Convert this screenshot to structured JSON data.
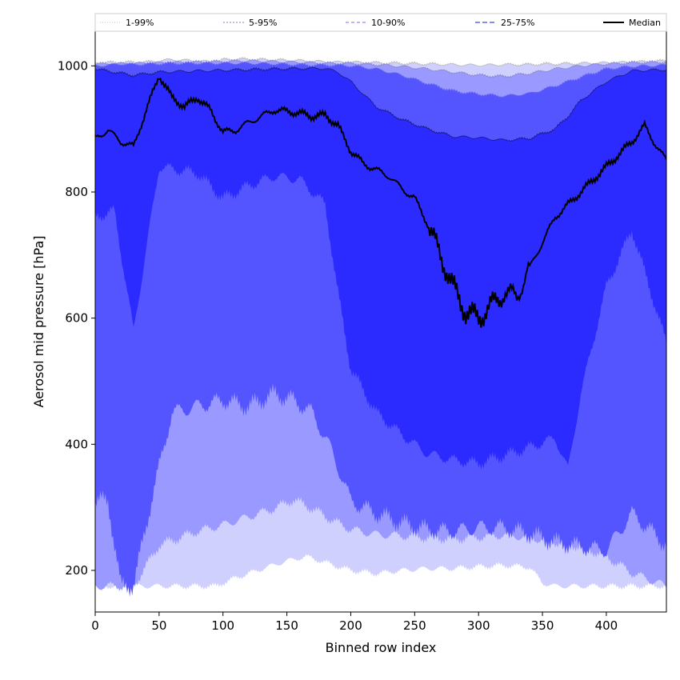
{
  "chart_data": {
    "type": "area",
    "xlabel": "Binned row index",
    "ylabel": "Aerosol mid pressure [hPa]",
    "xlim": [
      0,
      447
    ],
    "ylim": [
      134,
      1055
    ],
    "x_ticks": [
      0,
      50,
      100,
      150,
      200,
      250,
      300,
      350,
      400
    ],
    "y_ticks": [
      200,
      400,
      600,
      800,
      1000
    ],
    "grid": false,
    "legend_position": "top",
    "bands": [
      {
        "name": "1-99%",
        "color": "#d0d0ff",
        "line_color": "#b8b8b8",
        "x": [
          0,
          40,
          60,
          80,
          95,
          100,
          110,
          130,
          150,
          165,
          175,
          190,
          200,
          220,
          240,
          260,
          280,
          300,
          320,
          340,
          350,
          360,
          380,
          400,
          420,
          447
        ],
        "upper": [
          1005,
          1006,
          1010,
          1008,
          1006,
          1010,
          1011,
          1010,
          1009,
          1008,
          1007,
          1006,
          1006,
          1005,
          1004,
          1003,
          1002,
          1001,
          1002,
          1002,
          1003,
          1003,
          1004,
          1005,
          1006,
          1008
        ],
        "lower": [
          175,
          175,
          175,
          175,
          175,
          180,
          188,
          202,
          215,
          222,
          216,
          206,
          200,
          195,
          200,
          203,
          203,
          206,
          208,
          205,
          180,
          175,
          175,
          175,
          175,
          175
        ]
      },
      {
        "name": "5-95%",
        "color": "#9999ff",
        "line_color": "#8888cc",
        "x": [
          0,
          30,
          50,
          80,
          100,
          120,
          140,
          155,
          170,
          185,
          200,
          220,
          240,
          260,
          280,
          300,
          320,
          340,
          360,
          380,
          400,
          420,
          447
        ],
        "upper": [
          1003,
          1004,
          1005,
          1006,
          1007,
          1008,
          1007,
          1006,
          1005,
          1004,
          1004,
          1002,
          999,
          995,
          990,
          985,
          983,
          988,
          995,
          1000,
          1003,
          1005,
          1006
        ],
        "lower": [
          175,
          175,
          240,
          262,
          272,
          285,
          298,
          312,
          298,
          280,
          265,
          257,
          255,
          252,
          250,
          253,
          256,
          252,
          245,
          238,
          222,
          196,
          175
        ]
      },
      {
        "name": "10-90%",
        "color": "#5555ff",
        "line_color": "#6666ee",
        "x": [
          0,
          10,
          20,
          30,
          45,
          60,
          80,
          100,
          120,
          140,
          155,
          170,
          185,
          200,
          220,
          240,
          260,
          280,
          300,
          320,
          340,
          360,
          380,
          400,
          420,
          447
        ],
        "upper": [
          1000,
          1001,
          1003,
          1002,
          1003,
          1004,
          1004,
          1004,
          1004,
          1003,
          1002,
          1001,
          1001,
          1000,
          995,
          985,
          972,
          960,
          955,
          952,
          956,
          968,
          982,
          995,
          999,
          1001
        ],
        "lower": [
          310,
          310,
          176,
          176,
          320,
          450,
          460,
          470,
          460,
          480,
          470,
          450,
          390,
          310,
          290,
          275,
          265,
          262,
          268,
          268,
          258,
          245,
          238,
          232,
          290,
          240
        ]
      },
      {
        "name": "25-75%",
        "color": "#2b2bff",
        "line_color": "#1a1a7f",
        "x": [
          0,
          15,
          30,
          50,
          80,
          100,
          120,
          140,
          160,
          180,
          190,
          200,
          220,
          240,
          260,
          280,
          300,
          320,
          340,
          360,
          370,
          380,
          400,
          420,
          447
        ],
        "upper": [
          995,
          990,
          985,
          990,
          992,
          993,
          994,
          995,
          996,
          996,
          990,
          975,
          935,
          915,
          900,
          888,
          886,
          882,
          885,
          900,
          920,
          945,
          975,
          992,
          994
        ],
        "lower": [
          760,
          770,
          580,
          840,
          830,
          790,
          810,
          825,
          820,
          780,
          640,
          520,
          450,
          415,
          385,
          375,
          370,
          382,
          395,
          410,
          360,
          480,
          650,
          740,
          560
        ]
      },
      {
        "name": "Median",
        "color": "#000000",
        "x": [
          0,
          10,
          20,
          30,
          40,
          50,
          60,
          70,
          80,
          90,
          100,
          110,
          120,
          130,
          140,
          150,
          160,
          170,
          180,
          190,
          200,
          210,
          220,
          230,
          240,
          250,
          260,
          270,
          280,
          290,
          300,
          310,
          320,
          330,
          340,
          350,
          360,
          370,
          380,
          390,
          400,
          410,
          420,
          430,
          440,
          447
        ],
        "values": [
          885,
          898,
          880,
          872,
          930,
          985,
          950,
          935,
          950,
          930,
          895,
          898,
          910,
          920,
          930,
          928,
          925,
          920,
          922,
          905,
          865,
          845,
          835,
          825,
          805,
          790,
          750,
          700,
          650,
          610,
          600,
          620,
          640,
          635,
          680,
          720,
          760,
          780,
          800,
          820,
          840,
          860,
          880,
          905,
          870,
          850
        ]
      }
    ],
    "legend": [
      {
        "label": "1-99%",
        "color": "#cccccc",
        "dash": "1,2"
      },
      {
        "label": "5-95%",
        "color": "#9999cc",
        "dash": "2,2"
      },
      {
        "label": "10-90%",
        "color": "#8888ff",
        "dash": "4,3"
      },
      {
        "label": "25-75%",
        "color": "#4444ee",
        "dash": "6,3"
      },
      {
        "label": "Median",
        "color": "#000000",
        "dash": ""
      }
    ]
  }
}
